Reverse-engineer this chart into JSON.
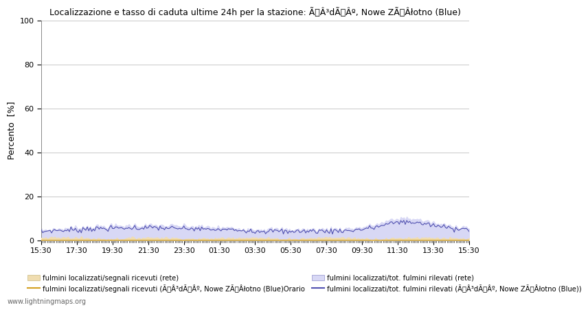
{
  "title": "Localizzazione e tasso di caduta ultime 24h per la stazione: ÃÂ³dÃÂº, Nowe ZÃÂłotno (Blue)",
  "ylabel": "Percento  [%]",
  "ylim": [
    0,
    100
  ],
  "yticks": [
    0,
    20,
    40,
    60,
    80,
    100
  ],
  "x_labels": [
    "15:30",
    "17:30",
    "19:30",
    "21:30",
    "23:30",
    "01:30",
    "03:30",
    "05:30",
    "07:30",
    "09:30",
    "11:30",
    "13:30",
    "15:30"
  ],
  "n_points": 289,
  "rete_fill_color": "#f0ddb0",
  "blue_fill_color": "#d8d8f5",
  "rete_orange_color": "#d4a020",
  "station_blue_color": "#5050b0",
  "background_color": "#ffffff",
  "grid_color": "#c8c8c8",
  "legend_labels": [
    "fulmini localizzati/segnali ricevuti (rete)",
    "fulmini localizzati/segnali ricevuti (ÃÂ³dÃÂº, Nowe ZÃÂłotno (Blue)Orario",
    "fulmini localizzati/tot. fulmini rilevati (rete)",
    "fulmini localizzati/tot. fulmini rilevati (ÃÂ³dÃÂº, Nowe ZÃÂłotno (Blue))"
  ],
  "watermark": "www.lightningmaps.org"
}
